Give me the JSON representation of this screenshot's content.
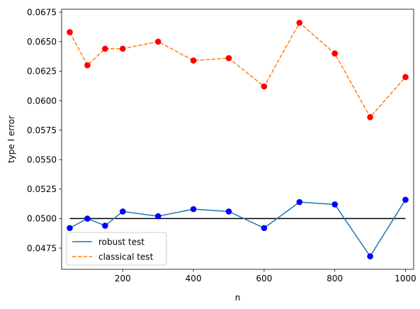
{
  "chart_data": {
    "type": "line",
    "title": "",
    "xlabel": "n",
    "ylabel": "type I error",
    "xlim": [
      27,
      1023
    ],
    "ylim": [
      0.0457,
      0.06775
    ],
    "x_ticks": [
      200,
      400,
      600,
      800,
      1000
    ],
    "y_ticks": [
      0.0475,
      0.05,
      0.0525,
      0.055,
      0.0575,
      0.06,
      0.0625,
      0.065,
      0.0675
    ],
    "x_tick_labels": [
      "200",
      "400",
      "600",
      "800",
      "1000"
    ],
    "y_tick_labels": [
      "0.0475",
      "0.0500",
      "0.0525",
      "0.0550",
      "0.0575",
      "0.0600",
      "0.0625",
      "0.0650",
      "0.0675"
    ],
    "x": [
      50,
      100,
      150,
      200,
      300,
      400,
      500,
      600,
      700,
      800,
      900,
      1000
    ],
    "series": [
      {
        "name": "robust test",
        "style": "solid",
        "color": "#1f77b4",
        "marker_color": "#0000ff",
        "values": [
          0.0492,
          0.05,
          0.0494,
          0.0506,
          0.0502,
          0.0508,
          0.0506,
          0.0492,
          0.0514,
          0.0512,
          0.0468,
          0.0516
        ]
      },
      {
        "name": "classical test",
        "style": "dashed",
        "color": "#ff7f0e",
        "marker_color": "#ff0000",
        "values": [
          0.0658,
          0.063,
          0.0644,
          0.0644,
          0.065,
          0.0634,
          0.0636,
          0.0612,
          0.0666,
          0.064,
          0.0586,
          0.062
        ]
      }
    ],
    "reference_line": {
      "y": 0.05,
      "x_from": 50,
      "x_to": 1000,
      "color": "#000000"
    },
    "grid": false,
    "legend_position": "lower-left"
  }
}
